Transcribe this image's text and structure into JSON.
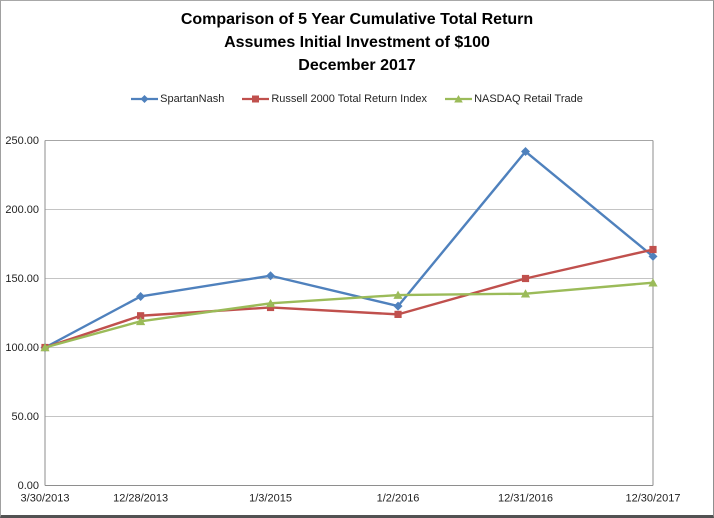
{
  "figure": {
    "title_lines": [
      "Comparison of 5 Year Cumulative Total Return",
      "Assumes Initial Investment of $100",
      "December 2017"
    ]
  },
  "chart_data": {
    "type": "line",
    "title": "Comparison of 5 Year Cumulative Total Return / Assumes Initial Investment of $100 / December 2017",
    "xlabel": "",
    "ylabel": "",
    "x_axis_type": "date",
    "categories": [
      "3/30/2013",
      "12/28/2013",
      "1/3/2015",
      "1/2/2016",
      "12/31/2016",
      "12/30/2017"
    ],
    "series": [
      {
        "name": "SpartanNash",
        "color": "#4F81BD",
        "marker": "diamond",
        "values": [
          100,
          137,
          152,
          130,
          242,
          166
        ]
      },
      {
        "name": "Russell 2000 Total Return Index",
        "color": "#C0504D",
        "marker": "square",
        "values": [
          100,
          123,
          129,
          124,
          150,
          171
        ]
      },
      {
        "name": "NASDAQ Retail Trade",
        "color": "#9BBB59",
        "marker": "triangle",
        "values": [
          100,
          119,
          132,
          138,
          139,
          147
        ]
      }
    ],
    "ylim": [
      0,
      250
    ],
    "y_ticks": [
      "0.00",
      "50.00",
      "100.00",
      "150.00",
      "200.00",
      "250.00"
    ],
    "grid": true,
    "legend_position": "top",
    "colors": {
      "gridline": "#C4C4C4",
      "plot_top_line": "#A6A6A6",
      "axis": "#8E8E8E",
      "text": "#1F1F1F"
    }
  }
}
